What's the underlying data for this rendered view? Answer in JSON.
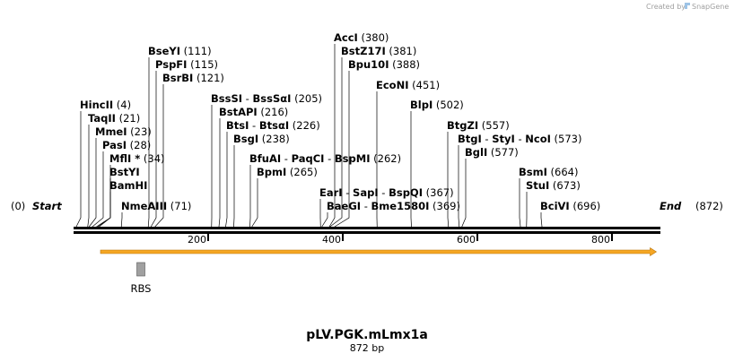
{
  "credit": {
    "text": "Created by",
    "brand": "SnapGene"
  },
  "plasmid": {
    "name": "pLV.PGK.mLmx1a",
    "size_label": "872 bp",
    "length_bp": 872
  },
  "ends": {
    "start": {
      "bp_label": "(0)",
      "name": "Start"
    },
    "end": {
      "name": "End",
      "bp_label": "(872)"
    }
  },
  "axis_ticks": [
    {
      "bp": 200,
      "label": "200"
    },
    {
      "bp": 400,
      "label": "400"
    },
    {
      "bp": 600,
      "label": "600"
    },
    {
      "bp": 800,
      "label": "800"
    }
  ],
  "sites": [
    {
      "bp": 4,
      "parts": [
        "HincII"
      ],
      "pos": "(4)"
    },
    {
      "bp": 21,
      "parts": [
        "TaqII"
      ],
      "pos": "(21)"
    },
    {
      "bp": 23,
      "parts": [
        "MmeI"
      ],
      "pos": "(23)"
    },
    {
      "bp": 28,
      "parts": [
        "PasI"
      ],
      "pos": "(28)"
    },
    {
      "bp": 34,
      "parts": [
        "MflI *"
      ],
      "pos": "(34)"
    },
    {
      "bp": 36,
      "parts": [
        "BstYI"
      ],
      "pos": ""
    },
    {
      "bp": 38,
      "parts": [
        "BamHI"
      ],
      "pos": ""
    },
    {
      "bp": 71,
      "parts": [
        "NmeAIII"
      ],
      "pos": "(71)"
    },
    {
      "bp": 111,
      "parts": [
        "BseYI"
      ],
      "pos": "(111)"
    },
    {
      "bp": 115,
      "parts": [
        "PspFI"
      ],
      "pos": "(115)"
    },
    {
      "bp": 121,
      "parts": [
        "BsrBI"
      ],
      "pos": "(121)"
    },
    {
      "bp": 205,
      "parts": [
        "BssSI",
        "BssSαI"
      ],
      "pos": "(205)"
    },
    {
      "bp": 216,
      "parts": [
        "BstAPI"
      ],
      "pos": "(216)"
    },
    {
      "bp": 226,
      "parts": [
        "BtsI",
        "BtsαI"
      ],
      "pos": "(226)"
    },
    {
      "bp": 238,
      "parts": [
        "BsgI"
      ],
      "pos": "(238)"
    },
    {
      "bp": 262,
      "parts": [
        "BfuAI",
        "PaqCI",
        "BspMI"
      ],
      "pos": "(262)"
    },
    {
      "bp": 265,
      "parts": [
        "BpmI"
      ],
      "pos": "(265)"
    },
    {
      "bp": 367,
      "parts": [
        "EarI",
        "SapI",
        "BspQI"
      ],
      "pos": "(367)"
    },
    {
      "bp": 369,
      "parts": [
        "BaeGI",
        "Bme1580I"
      ],
      "pos": "(369)"
    },
    {
      "bp": 380,
      "parts": [
        "AccI"
      ],
      "pos": "(380)"
    },
    {
      "bp": 381,
      "parts": [
        "BstZ17I"
      ],
      "pos": "(381)"
    },
    {
      "bp": 388,
      "parts": [
        "Bpu10I"
      ],
      "pos": "(388)"
    },
    {
      "bp": 451,
      "parts": [
        "EcoNI"
      ],
      "pos": "(451)"
    },
    {
      "bp": 502,
      "parts": [
        "BlpI"
      ],
      "pos": "(502)"
    },
    {
      "bp": 557,
      "parts": [
        "BtgZI"
      ],
      "pos": "(557)"
    },
    {
      "bp": 573,
      "parts": [
        "BtgI",
        "StyI",
        "NcoI"
      ],
      "pos": "(573)"
    },
    {
      "bp": 577,
      "parts": [
        "BglI"
      ],
      "pos": "(577)"
    },
    {
      "bp": 664,
      "parts": [
        "BsmI"
      ],
      "pos": "(664)"
    },
    {
      "bp": 673,
      "parts": [
        "StuI"
      ],
      "pos": "(673)"
    },
    {
      "bp": 696,
      "parts": [
        "BciVI"
      ],
      "pos": "(696)"
    }
  ],
  "features": [
    {
      "name": "orf-arrow",
      "start_bp": 40,
      "end_bp": 866,
      "color": "#f5a623"
    },
    {
      "name": "RBS",
      "label": "RBS",
      "bp": 100,
      "color": "#a0a0a0"
    }
  ]
}
